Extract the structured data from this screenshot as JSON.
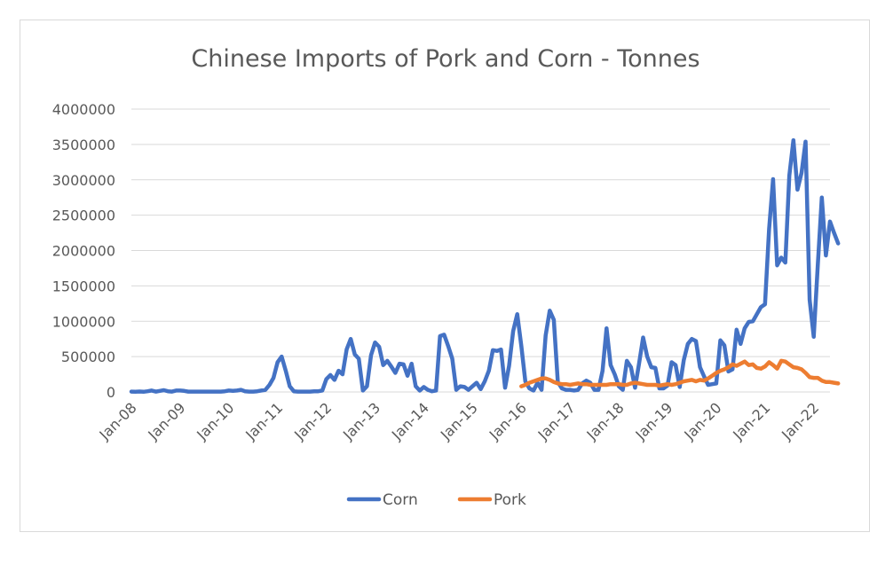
{
  "chart_data": {
    "type": "line",
    "title": "Chinese Imports of Pork and Corn - Tonnes",
    "xlabel": "",
    "ylabel": "",
    "x_tick_labels": [
      "Jan-08",
      "Jan-09",
      "Jan-10",
      "Jan-11",
      "Jan-12",
      "Jan-13",
      "Jan-14",
      "Jan-15",
      "Jan-16",
      "Jan-17",
      "Jan-18",
      "Jan-19",
      "Jan-20",
      "Jan-21",
      "Jan-22"
    ],
    "y_tick_labels": [
      "0",
      "500000",
      "1000000",
      "1500000",
      "2000000",
      "2500000",
      "3000000",
      "3500000",
      "4000000"
    ],
    "ylim": [
      0,
      4000000
    ],
    "xlim": [
      "2008-01",
      "2022-05"
    ],
    "grid": "horizontal",
    "legend_position": "bottom",
    "series": [
      {
        "name": "Corn",
        "color": "#4472c4",
        "points": [
          [
            "2008-01",
            5000
          ],
          [
            "2008-02",
            4000
          ],
          [
            "2008-03",
            6000
          ],
          [
            "2008-04",
            3000
          ],
          [
            "2008-05",
            10000
          ],
          [
            "2008-06",
            20000
          ],
          [
            "2008-07",
            5000
          ],
          [
            "2008-08",
            15000
          ],
          [
            "2008-09",
            25000
          ],
          [
            "2008-10",
            10000
          ],
          [
            "2008-11",
            5000
          ],
          [
            "2008-12",
            20000
          ],
          [
            "2009-01",
            20000
          ],
          [
            "2009-02",
            15000
          ],
          [
            "2009-03",
            5000
          ],
          [
            "2009-04",
            5000
          ],
          [
            "2009-05",
            5000
          ],
          [
            "2009-06",
            5000
          ],
          [
            "2009-07",
            5000
          ],
          [
            "2009-08",
            5000
          ],
          [
            "2009-09",
            5000
          ],
          [
            "2009-10",
            5000
          ],
          [
            "2009-11",
            5000
          ],
          [
            "2009-12",
            10000
          ],
          [
            "2010-01",
            20000
          ],
          [
            "2010-02",
            15000
          ],
          [
            "2010-03",
            20000
          ],
          [
            "2010-04",
            30000
          ],
          [
            "2010-05",
            10000
          ],
          [
            "2010-06",
            5000
          ],
          [
            "2010-07",
            5000
          ],
          [
            "2010-08",
            10000
          ],
          [
            "2010-09",
            20000
          ],
          [
            "2010-10",
            30000
          ],
          [
            "2010-11",
            100000
          ],
          [
            "2010-12",
            200000
          ],
          [
            "2011-01",
            420000
          ],
          [
            "2011-02",
            500000
          ],
          [
            "2011-03",
            300000
          ],
          [
            "2011-04",
            80000
          ],
          [
            "2011-05",
            10000
          ],
          [
            "2011-06",
            5000
          ],
          [
            "2011-07",
            5000
          ],
          [
            "2011-08",
            5000
          ],
          [
            "2011-09",
            5000
          ],
          [
            "2011-10",
            10000
          ],
          [
            "2011-11",
            10000
          ],
          [
            "2011-12",
            20000
          ],
          [
            "2012-01",
            180000
          ],
          [
            "2012-02",
            240000
          ],
          [
            "2012-03",
            170000
          ],
          [
            "2012-04",
            300000
          ],
          [
            "2012-05",
            250000
          ],
          [
            "2012-06",
            600000
          ],
          [
            "2012-07",
            750000
          ],
          [
            "2012-08",
            530000
          ],
          [
            "2012-09",
            470000
          ],
          [
            "2012-10",
            20000
          ],
          [
            "2012-11",
            80000
          ],
          [
            "2012-12",
            520000
          ],
          [
            "2013-01",
            700000
          ],
          [
            "2013-02",
            640000
          ],
          [
            "2013-03",
            380000
          ],
          [
            "2013-04",
            440000
          ],
          [
            "2013-05",
            360000
          ],
          [
            "2013-06",
            270000
          ],
          [
            "2013-07",
            400000
          ],
          [
            "2013-08",
            390000
          ],
          [
            "2013-09",
            230000
          ],
          [
            "2013-10",
            400000
          ],
          [
            "2013-11",
            80000
          ],
          [
            "2013-12",
            20000
          ],
          [
            "2014-01",
            70000
          ],
          [
            "2014-02",
            30000
          ],
          [
            "2014-03",
            10000
          ],
          [
            "2014-04",
            20000
          ],
          [
            "2014-05",
            790000
          ],
          [
            "2014-06",
            810000
          ],
          [
            "2014-07",
            650000
          ],
          [
            "2014-08",
            470000
          ],
          [
            "2014-09",
            30000
          ],
          [
            "2014-10",
            80000
          ],
          [
            "2014-11",
            70000
          ],
          [
            "2014-12",
            30000
          ],
          [
            "2015-01",
            80000
          ],
          [
            "2015-02",
            130000
          ],
          [
            "2015-03",
            40000
          ],
          [
            "2015-04",
            150000
          ],
          [
            "2015-05",
            300000
          ],
          [
            "2015-06",
            590000
          ],
          [
            "2015-07",
            580000
          ],
          [
            "2015-08",
            600000
          ],
          [
            "2015-09",
            60000
          ],
          [
            "2015-10",
            370000
          ],
          [
            "2015-11",
            860000
          ],
          [
            "2015-12",
            1100000
          ],
          [
            "2016-01",
            650000
          ],
          [
            "2016-02",
            150000
          ],
          [
            "2016-03",
            50000
          ],
          [
            "2016-04",
            20000
          ],
          [
            "2016-05",
            130000
          ],
          [
            "2016-06",
            30000
          ],
          [
            "2016-07",
            800000
          ],
          [
            "2016-08",
            1150000
          ],
          [
            "2016-09",
            1020000
          ],
          [
            "2016-10",
            140000
          ],
          [
            "2016-11",
            50000
          ],
          [
            "2016-12",
            30000
          ],
          [
            "2017-01",
            30000
          ],
          [
            "2017-02",
            20000
          ],
          [
            "2017-03",
            30000
          ],
          [
            "2017-04",
            120000
          ],
          [
            "2017-05",
            160000
          ],
          [
            "2017-06",
            130000
          ],
          [
            "2017-07",
            30000
          ],
          [
            "2017-08",
            30000
          ],
          [
            "2017-09",
            300000
          ],
          [
            "2017-10",
            900000
          ],
          [
            "2017-11",
            380000
          ],
          [
            "2017-12",
            250000
          ],
          [
            "2018-01",
            80000
          ],
          [
            "2018-02",
            30000
          ],
          [
            "2018-03",
            440000
          ],
          [
            "2018-04",
            350000
          ],
          [
            "2018-05",
            60000
          ],
          [
            "2018-06",
            400000
          ],
          [
            "2018-07",
            770000
          ],
          [
            "2018-08",
            500000
          ],
          [
            "2018-09",
            350000
          ],
          [
            "2018-10",
            340000
          ],
          [
            "2018-11",
            50000
          ],
          [
            "2018-12",
            50000
          ],
          [
            "2019-01",
            90000
          ],
          [
            "2019-02",
            420000
          ],
          [
            "2019-03",
            380000
          ],
          [
            "2019-04",
            70000
          ],
          [
            "2019-05",
            450000
          ],
          [
            "2019-06",
            680000
          ],
          [
            "2019-07",
            750000
          ],
          [
            "2019-08",
            720000
          ],
          [
            "2019-09",
            350000
          ],
          [
            "2019-10",
            220000
          ],
          [
            "2019-11",
            100000
          ],
          [
            "2019-12",
            110000
          ],
          [
            "2020-01",
            120000
          ],
          [
            "2020-02",
            730000
          ],
          [
            "2020-03",
            660000
          ],
          [
            "2020-04",
            290000
          ],
          [
            "2020-05",
            320000
          ],
          [
            "2020-06",
            880000
          ],
          [
            "2020-07",
            680000
          ],
          [
            "2020-08",
            900000
          ],
          [
            "2020-09",
            990000
          ],
          [
            "2020-10",
            1000000
          ],
          [
            "2020-11",
            1100000
          ],
          [
            "2020-12",
            1200000
          ],
          [
            "2021-01",
            1240000
          ],
          [
            "2021-02",
            2300000
          ],
          [
            "2021-03",
            3010000
          ],
          [
            "2021-04",
            1790000
          ],
          [
            "2021-05",
            1900000
          ],
          [
            "2021-06",
            1830000
          ],
          [
            "2021-07",
            3060000
          ],
          [
            "2021-08",
            3560000
          ],
          [
            "2021-09",
            2860000
          ],
          [
            "2021-10",
            3100000
          ],
          [
            "2021-11",
            3540000
          ],
          [
            "2021-12",
            1300000
          ],
          [
            "2022-01",
            780000
          ],
          [
            "2022-02",
            1800000
          ],
          [
            "2022-03",
            2750000
          ],
          [
            "2022-04",
            1930000
          ],
          [
            "2022-05",
            2410000
          ],
          [
            "2022-06",
            2250000
          ],
          [
            "2022-07",
            2100000
          ]
        ]
      },
      {
        "name": "Pork",
        "color": "#ed7d31",
        "points": [
          [
            "2016-01",
            80000
          ],
          [
            "2016-02",
            100000
          ],
          [
            "2016-03",
            130000
          ],
          [
            "2016-04",
            150000
          ],
          [
            "2016-05",
            170000
          ],
          [
            "2016-06",
            190000
          ],
          [
            "2016-07",
            190000
          ],
          [
            "2016-08",
            170000
          ],
          [
            "2016-09",
            140000
          ],
          [
            "2016-10",
            120000
          ],
          [
            "2016-11",
            110000
          ],
          [
            "2016-12",
            110000
          ],
          [
            "2017-01",
            100000
          ],
          [
            "2017-02",
            110000
          ],
          [
            "2017-03",
            120000
          ],
          [
            "2017-04",
            110000
          ],
          [
            "2017-05",
            110000
          ],
          [
            "2017-06",
            100000
          ],
          [
            "2017-07",
            100000
          ],
          [
            "2017-08",
            100000
          ],
          [
            "2017-09",
            100000
          ],
          [
            "2017-10",
            100000
          ],
          [
            "2017-11",
            110000
          ],
          [
            "2017-12",
            110000
          ],
          [
            "2018-01",
            110000
          ],
          [
            "2018-02",
            100000
          ],
          [
            "2018-03",
            100000
          ],
          [
            "2018-04",
            120000
          ],
          [
            "2018-05",
            130000
          ],
          [
            "2018-06",
            120000
          ],
          [
            "2018-07",
            110000
          ],
          [
            "2018-08",
            100000
          ],
          [
            "2018-09",
            100000
          ],
          [
            "2018-10",
            100000
          ],
          [
            "2018-11",
            90000
          ],
          [
            "2018-12",
            100000
          ],
          [
            "2019-01",
            110000
          ],
          [
            "2019-02",
            100000
          ],
          [
            "2019-03",
            110000
          ],
          [
            "2019-04",
            130000
          ],
          [
            "2019-05",
            150000
          ],
          [
            "2019-06",
            160000
          ],
          [
            "2019-07",
            170000
          ],
          [
            "2019-08",
            150000
          ],
          [
            "2019-09",
            170000
          ],
          [
            "2019-10",
            160000
          ],
          [
            "2019-11",
            190000
          ],
          [
            "2019-12",
            230000
          ],
          [
            "2020-01",
            270000
          ],
          [
            "2020-02",
            300000
          ],
          [
            "2020-03",
            320000
          ],
          [
            "2020-04",
            350000
          ],
          [
            "2020-05",
            390000
          ],
          [
            "2020-06",
            370000
          ],
          [
            "2020-07",
            400000
          ],
          [
            "2020-08",
            430000
          ],
          [
            "2020-09",
            380000
          ],
          [
            "2020-10",
            390000
          ],
          [
            "2020-11",
            340000
          ],
          [
            "2020-12",
            330000
          ],
          [
            "2021-01",
            360000
          ],
          [
            "2021-02",
            420000
          ],
          [
            "2021-03",
            380000
          ],
          [
            "2021-04",
            330000
          ],
          [
            "2021-05",
            440000
          ],
          [
            "2021-06",
            430000
          ],
          [
            "2021-07",
            390000
          ],
          [
            "2021-08",
            350000
          ],
          [
            "2021-09",
            340000
          ],
          [
            "2021-10",
            320000
          ],
          [
            "2021-11",
            270000
          ],
          [
            "2021-12",
            210000
          ],
          [
            "2022-01",
            200000
          ],
          [
            "2022-02",
            200000
          ],
          [
            "2022-03",
            160000
          ],
          [
            "2022-04",
            140000
          ],
          [
            "2022-05",
            140000
          ],
          [
            "2022-06",
            130000
          ],
          [
            "2022-07",
            120000
          ]
        ]
      }
    ]
  }
}
